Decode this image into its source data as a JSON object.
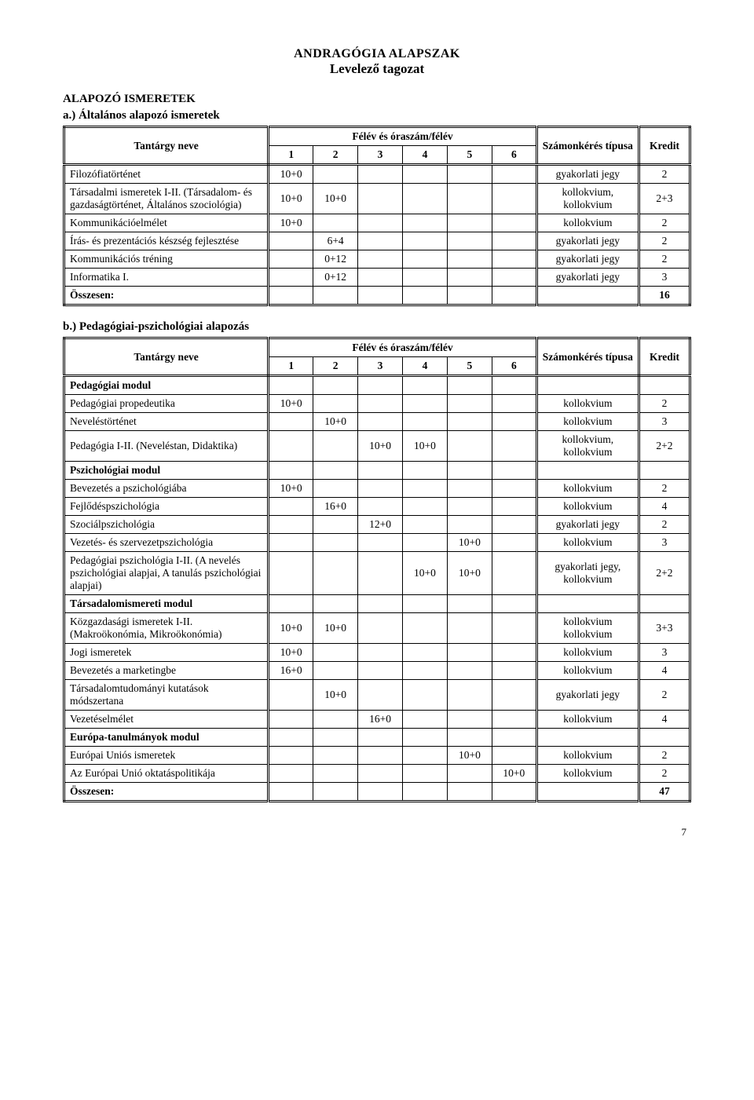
{
  "page": {
    "title_line1": "ANDRAGÓGIA ALAPSZAK",
    "title_line2": "Levelező tagozat",
    "section1": "ALAPOZÓ ISMERETEK",
    "section1a": "a.) Általános alapozó ismeretek",
    "section1b": "b.) Pedagógiai-pszichológiai alapozás",
    "pagenum": "7"
  },
  "table_headers": {
    "name": "Tantárgy neve",
    "felev_group": "Félév és óraszám/félév",
    "s1": "1",
    "s2": "2",
    "s3": "3",
    "s4": "4",
    "s5": "5",
    "s6": "6",
    "assess": "Számonkérés típusa",
    "kredit": "Kredit"
  },
  "tableA": {
    "rows": [
      {
        "name": "Filozófiatörténet",
        "c": [
          "10+0",
          "",
          "",
          "",
          "",
          ""
        ],
        "assess": "gyakorlati jegy",
        "kredit": "2"
      },
      {
        "name": "Társadalmi ismeretek I-II. (Társadalom- és gazdaságtörténet, Általános szociológia)",
        "c": [
          "10+0",
          "10+0",
          "",
          "",
          "",
          ""
        ],
        "assess": "kollokvium, kollokvium",
        "kredit": "2+3"
      },
      {
        "name": "Kommunikációelmélet",
        "c": [
          "10+0",
          "",
          "",
          "",
          "",
          ""
        ],
        "assess": "kollokvium",
        "kredit": "2"
      },
      {
        "name": "Írás- és prezentációs készség fejlesztése",
        "c": [
          "",
          "6+4",
          "",
          "",
          "",
          ""
        ],
        "assess": "gyakorlati jegy",
        "kredit": "2"
      },
      {
        "name": "Kommunikációs tréning",
        "c": [
          "",
          "0+12",
          "",
          "",
          "",
          ""
        ],
        "assess": "gyakorlati jegy",
        "kredit": "2"
      },
      {
        "name": "Informatika I.",
        "c": [
          "",
          "0+12",
          "",
          "",
          "",
          ""
        ],
        "assess": "gyakorlati jegy",
        "kredit": "3"
      }
    ],
    "total_label": "Összesen:",
    "total_val": "16"
  },
  "tableB": {
    "rows": [
      {
        "module": "Pedagógiai modul"
      },
      {
        "name": "Pedagógiai propedeutika",
        "c": [
          "10+0",
          "",
          "",
          "",
          "",
          ""
        ],
        "assess": "kollokvium",
        "kredit": "2"
      },
      {
        "name": "Neveléstörténet",
        "c": [
          "",
          "10+0",
          "",
          "",
          "",
          ""
        ],
        "assess": "kollokvium",
        "kredit": "3"
      },
      {
        "name": "Pedagógia I-II. (Neveléstan, Didaktika)",
        "c": [
          "",
          "",
          "10+0",
          "10+0",
          "",
          ""
        ],
        "assess": "kollokvium, kollokvium",
        "kredit": "2+2"
      },
      {
        "module": "Pszichológiai modul"
      },
      {
        "name": "Bevezetés a pszichológiába",
        "c": [
          "10+0",
          "",
          "",
          "",
          "",
          ""
        ],
        "assess": "kollokvium",
        "kredit": "2"
      },
      {
        "name": "Fejlődéspszichológia",
        "c": [
          "",
          "16+0",
          "",
          "",
          "",
          ""
        ],
        "assess": "kollokvium",
        "kredit": "4"
      },
      {
        "name": "Szociálpszichológia",
        "c": [
          "",
          "",
          "12+0",
          "",
          "",
          ""
        ],
        "assess": "gyakorlati jegy",
        "kredit": "2"
      },
      {
        "name": "Vezetés- és szervezetpszichológia",
        "c": [
          "",
          "",
          "",
          "",
          "10+0",
          ""
        ],
        "assess": "kollokvium",
        "kredit": "3"
      },
      {
        "name": "Pedagógiai pszichológia I-II. (A nevelés pszichológiai alapjai, A tanulás pszichológiai alapjai)",
        "c": [
          "",
          "",
          "",
          "10+0",
          "10+0",
          ""
        ],
        "assess": "gyakorlati jegy, kollokvium",
        "kredit": "2+2"
      },
      {
        "module": "Társadalomismereti modul"
      },
      {
        "name": "Közgazdasági ismeretek I-II. (Makroökonómia, Mikroökonómia)",
        "c": [
          "10+0",
          "10+0",
          "",
          "",
          "",
          ""
        ],
        "assess": "kollokvium kollokvium",
        "kredit": "3+3"
      },
      {
        "name": "Jogi ismeretek",
        "c": [
          "10+0",
          "",
          "",
          "",
          "",
          ""
        ],
        "assess": "kollokvium",
        "kredit": "3"
      },
      {
        "name": "Bevezetés a marketingbe",
        "c": [
          "16+0",
          "",
          "",
          "",
          "",
          ""
        ],
        "assess": "kollokvium",
        "kredit": "4"
      },
      {
        "name": "Társadalomtudományi kutatások módszertana",
        "c": [
          "",
          "10+0",
          "",
          "",
          "",
          ""
        ],
        "assess": "gyakorlati jegy",
        "kredit": "2"
      },
      {
        "name": "Vezetéselmélet",
        "c": [
          "",
          "",
          "16+0",
          "",
          "",
          ""
        ],
        "assess": "kollokvium",
        "kredit": "4"
      },
      {
        "module": "Európa-tanulmányok modul"
      },
      {
        "name": "Európai Uniós ismeretek",
        "c": [
          "",
          "",
          "",
          "",
          "10+0",
          ""
        ],
        "assess": "kollokvium",
        "kredit": "2"
      },
      {
        "name": "Az Európai Unió oktatáspolitikája",
        "c": [
          "",
          "",
          "",
          "",
          "",
          "10+0"
        ],
        "assess": "kollokvium",
        "kredit": "2"
      }
    ],
    "total_label": "Összesen:",
    "total_val": "47"
  }
}
